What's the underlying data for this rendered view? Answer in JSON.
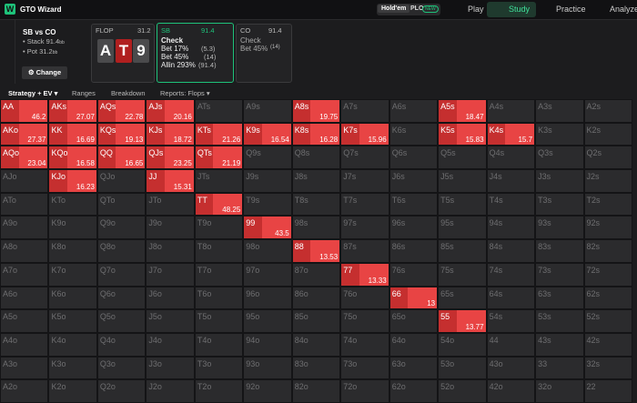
{
  "topbar": {
    "brand": "GTO Wizard",
    "game_modes": [
      "Hold'em",
      "PLO"
    ],
    "badge": "NEW",
    "nav": [
      "Play",
      "Study",
      "Practice",
      "Analyze"
    ]
  },
  "spot": {
    "title": "SB vs CO",
    "stack_label": "Stack",
    "stack": 91.4,
    "pot_label": "Pot",
    "pot": 31.2,
    "unit": "bb",
    "button": "Change"
  },
  "flop": {
    "label": "FLOP",
    "pot": 31.2,
    "cards": [
      "A",
      "T",
      "9"
    ]
  },
  "sb": {
    "label": "SB",
    "stack": 91.4,
    "actions": [
      {
        "name": "Check",
        "amount": null
      },
      {
        "name": "Bet 17%",
        "amount": "(5.3)"
      },
      {
        "name": "Bet 45%",
        "amount": "(14)"
      },
      {
        "name": "Allin 293%",
        "amount": "(91.4)"
      }
    ]
  },
  "co": {
    "label": "CO",
    "stack": 91.4,
    "actions": [
      {
        "name": "Check",
        "amount": null
      },
      {
        "name": "Bet 45%",
        "amount": "(14)"
      }
    ]
  },
  "tabs": [
    "Strategy + EV",
    "Ranges",
    "Breakdown",
    "Reports: Flops"
  ],
  "grid": {
    "rows": [
      [
        {
          "hand": "AA",
          "ev": 46.2
        },
        {
          "hand": "AKs",
          "ev": 27.07
        },
        {
          "hand": "AQs",
          "ev": 22.78
        },
        {
          "hand": "AJs",
          "ev": 20.16
        },
        {
          "hand": "ATs"
        },
        {
          "hand": "A9s"
        },
        {
          "hand": "A8s",
          "ev": 19.75
        },
        {
          "hand": "A7s"
        },
        {
          "hand": "A6s"
        },
        {
          "hand": "A5s",
          "ev": 18.47
        },
        {
          "hand": "A4s"
        },
        {
          "hand": "A3s"
        },
        {
          "hand": "A2s"
        }
      ],
      [
        {
          "hand": "AKo",
          "ev": 27.37
        },
        {
          "hand": "KK",
          "ev": 16.69
        },
        {
          "hand": "KQs",
          "ev": 19.13
        },
        {
          "hand": "KJs",
          "ev": 18.72
        },
        {
          "hand": "KTs",
          "ev": 21.26
        },
        {
          "hand": "K9s",
          "ev": 16.54
        },
        {
          "hand": "K8s",
          "ev": 16.28
        },
        {
          "hand": "K7s",
          "ev": 15.96
        },
        {
          "hand": "K6s"
        },
        {
          "hand": "K5s",
          "ev": 15.83
        },
        {
          "hand": "K4s",
          "ev": 15.7
        },
        {
          "hand": "K3s"
        },
        {
          "hand": "K2s"
        }
      ],
      [
        {
          "hand": "AQo",
          "ev": 23.04
        },
        {
          "hand": "KQo",
          "ev": 16.58
        },
        {
          "hand": "QQ",
          "ev": 16.65
        },
        {
          "hand": "QJs",
          "ev": 23.25
        },
        {
          "hand": "QTs",
          "ev": 21.19
        },
        {
          "hand": "Q9s"
        },
        {
          "hand": "Q8s"
        },
        {
          "hand": "Q7s"
        },
        {
          "hand": "Q6s"
        },
        {
          "hand": "Q5s"
        },
        {
          "hand": "Q4s"
        },
        {
          "hand": "Q3s"
        },
        {
          "hand": "Q2s"
        }
      ],
      [
        {
          "hand": "AJo"
        },
        {
          "hand": "KJo",
          "ev": 16.23
        },
        {
          "hand": "QJo"
        },
        {
          "hand": "JJ",
          "ev": 15.31
        },
        {
          "hand": "JTs"
        },
        {
          "hand": "J9s"
        },
        {
          "hand": "J8s"
        },
        {
          "hand": "J7s"
        },
        {
          "hand": "J6s"
        },
        {
          "hand": "J5s"
        },
        {
          "hand": "J4s"
        },
        {
          "hand": "J3s"
        },
        {
          "hand": "J2s"
        }
      ],
      [
        {
          "hand": "ATo"
        },
        {
          "hand": "KTo"
        },
        {
          "hand": "QTo"
        },
        {
          "hand": "JTo"
        },
        {
          "hand": "TT",
          "ev": 48.25
        },
        {
          "hand": "T9s"
        },
        {
          "hand": "T8s"
        },
        {
          "hand": "T7s"
        },
        {
          "hand": "T6s"
        },
        {
          "hand": "T5s"
        },
        {
          "hand": "T4s"
        },
        {
          "hand": "T3s"
        },
        {
          "hand": "T2s"
        }
      ],
      [
        {
          "hand": "A9o"
        },
        {
          "hand": "K9o"
        },
        {
          "hand": "Q9o"
        },
        {
          "hand": "J9o"
        },
        {
          "hand": "T9o"
        },
        {
          "hand": "99",
          "ev": 43.5
        },
        {
          "hand": "98s"
        },
        {
          "hand": "97s"
        },
        {
          "hand": "96s"
        },
        {
          "hand": "95s"
        },
        {
          "hand": "94s"
        },
        {
          "hand": "93s"
        },
        {
          "hand": "92s"
        }
      ],
      [
        {
          "hand": "A8o"
        },
        {
          "hand": "K8o"
        },
        {
          "hand": "Q8o"
        },
        {
          "hand": "J8o"
        },
        {
          "hand": "T8o"
        },
        {
          "hand": "98o"
        },
        {
          "hand": "88",
          "ev": 13.53
        },
        {
          "hand": "87s"
        },
        {
          "hand": "86s"
        },
        {
          "hand": "85s"
        },
        {
          "hand": "84s"
        },
        {
          "hand": "83s"
        },
        {
          "hand": "82s"
        }
      ],
      [
        {
          "hand": "A7o"
        },
        {
          "hand": "K7o"
        },
        {
          "hand": "Q7o"
        },
        {
          "hand": "J7o"
        },
        {
          "hand": "T7o"
        },
        {
          "hand": "97o"
        },
        {
          "hand": "87o"
        },
        {
          "hand": "77",
          "ev": 13.33
        },
        {
          "hand": "76s"
        },
        {
          "hand": "75s"
        },
        {
          "hand": "74s"
        },
        {
          "hand": "73s"
        },
        {
          "hand": "72s"
        }
      ],
      [
        {
          "hand": "A6o"
        },
        {
          "hand": "K6o"
        },
        {
          "hand": "Q6o"
        },
        {
          "hand": "J6o"
        },
        {
          "hand": "T6o"
        },
        {
          "hand": "96o"
        },
        {
          "hand": "86o"
        },
        {
          "hand": "76o"
        },
        {
          "hand": "66",
          "ev": 13
        },
        {
          "hand": "65s"
        },
        {
          "hand": "64s"
        },
        {
          "hand": "63s"
        },
        {
          "hand": "62s"
        }
      ],
      [
        {
          "hand": "A5o"
        },
        {
          "hand": "K5o"
        },
        {
          "hand": "Q5o"
        },
        {
          "hand": "J5o"
        },
        {
          "hand": "T5o"
        },
        {
          "hand": "95o"
        },
        {
          "hand": "85o"
        },
        {
          "hand": "75o"
        },
        {
          "hand": "65o"
        },
        {
          "hand": "55",
          "ev": 13.77
        },
        {
          "hand": "54s"
        },
        {
          "hand": "53s"
        },
        {
          "hand": "52s"
        }
      ],
      [
        {
          "hand": "A4o"
        },
        {
          "hand": "K4o"
        },
        {
          "hand": "Q4o"
        },
        {
          "hand": "J4o"
        },
        {
          "hand": "T4o"
        },
        {
          "hand": "94o"
        },
        {
          "hand": "84o"
        },
        {
          "hand": "74o"
        },
        {
          "hand": "64o"
        },
        {
          "hand": "54o"
        },
        {
          "hand": "44"
        },
        {
          "hand": "43s"
        },
        {
          "hand": "42s"
        }
      ],
      [
        {
          "hand": "A3o"
        },
        {
          "hand": "K3o"
        },
        {
          "hand": "Q3o"
        },
        {
          "hand": "J3o"
        },
        {
          "hand": "T3o"
        },
        {
          "hand": "93o"
        },
        {
          "hand": "83o"
        },
        {
          "hand": "73o"
        },
        {
          "hand": "63o"
        },
        {
          "hand": "53o"
        },
        {
          "hand": "43o"
        },
        {
          "hand": "33"
        },
        {
          "hand": "32s"
        }
      ],
      [
        {
          "hand": "A2o"
        },
        {
          "hand": "K2o"
        },
        {
          "hand": "Q2o"
        },
        {
          "hand": "J2o"
        },
        {
          "hand": "T2o"
        },
        {
          "hand": "92o"
        },
        {
          "hand": "82o"
        },
        {
          "hand": "72o"
        },
        {
          "hand": "62o"
        },
        {
          "hand": "52o"
        },
        {
          "hand": "42o"
        },
        {
          "hand": "32o"
        },
        {
          "hand": "22"
        }
      ]
    ]
  }
}
